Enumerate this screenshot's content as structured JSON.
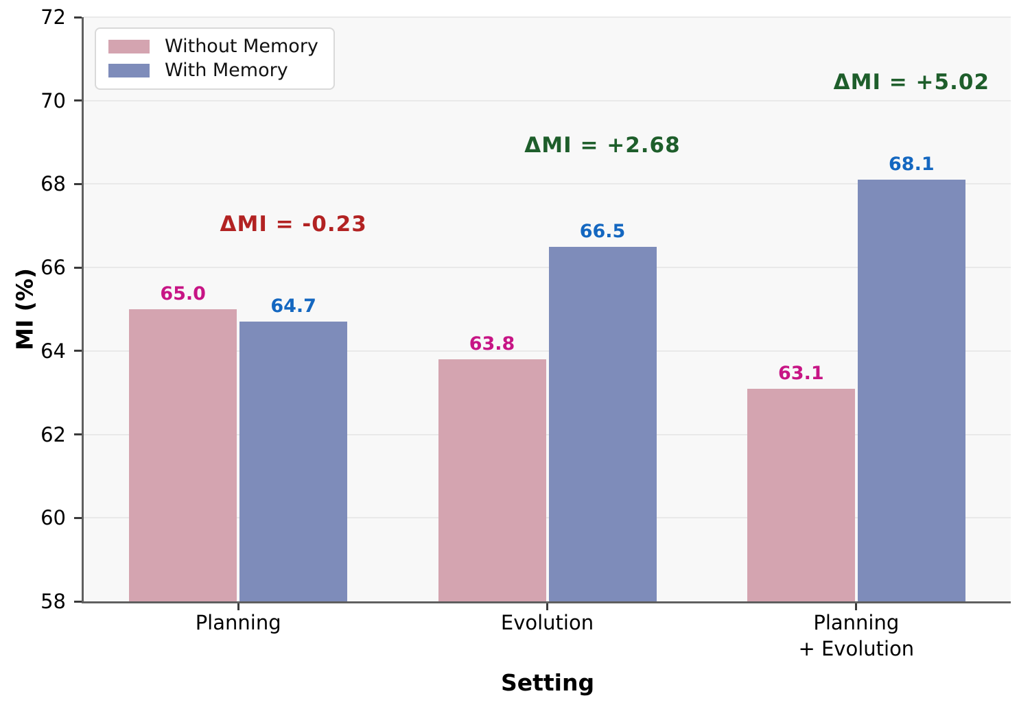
{
  "chart_data": {
    "type": "bar",
    "title": "",
    "xlabel": "Setting",
    "ylabel": "MI (%)",
    "ylim": [
      58,
      72
    ],
    "yticks": [
      58,
      60,
      62,
      64,
      66,
      68,
      70,
      72
    ],
    "grid": true,
    "legend_position": "upper left",
    "plot_bg_color": "#f8f8f8",
    "categories": [
      "Planning",
      "Evolution",
      "Planning\n+ Evolution"
    ],
    "series": [
      {
        "name": "Without Memory",
        "color": "#d4a4b0",
        "label_color": "#c71585",
        "values": [
          65.0,
          63.8,
          63.1
        ],
        "labels": [
          "65.0",
          "63.8",
          "63.1"
        ]
      },
      {
        "name": "With Memory",
        "color": "#7e8cba",
        "label_color": "#1467c0",
        "values": [
          64.7,
          66.5,
          68.1
        ],
        "labels": [
          "64.7",
          "66.5",
          "68.1"
        ]
      }
    ],
    "annotations": [
      {
        "text": "ΔMI = -0.23",
        "color": "#b22222",
        "value_y": 67.0
      },
      {
        "text": "ΔMI = +2.68",
        "color": "#1e5e2b",
        "value_y": 68.9
      },
      {
        "text": "ΔMI = +5.02",
        "color": "#1e5e2b",
        "value_y": 70.4
      }
    ]
  }
}
